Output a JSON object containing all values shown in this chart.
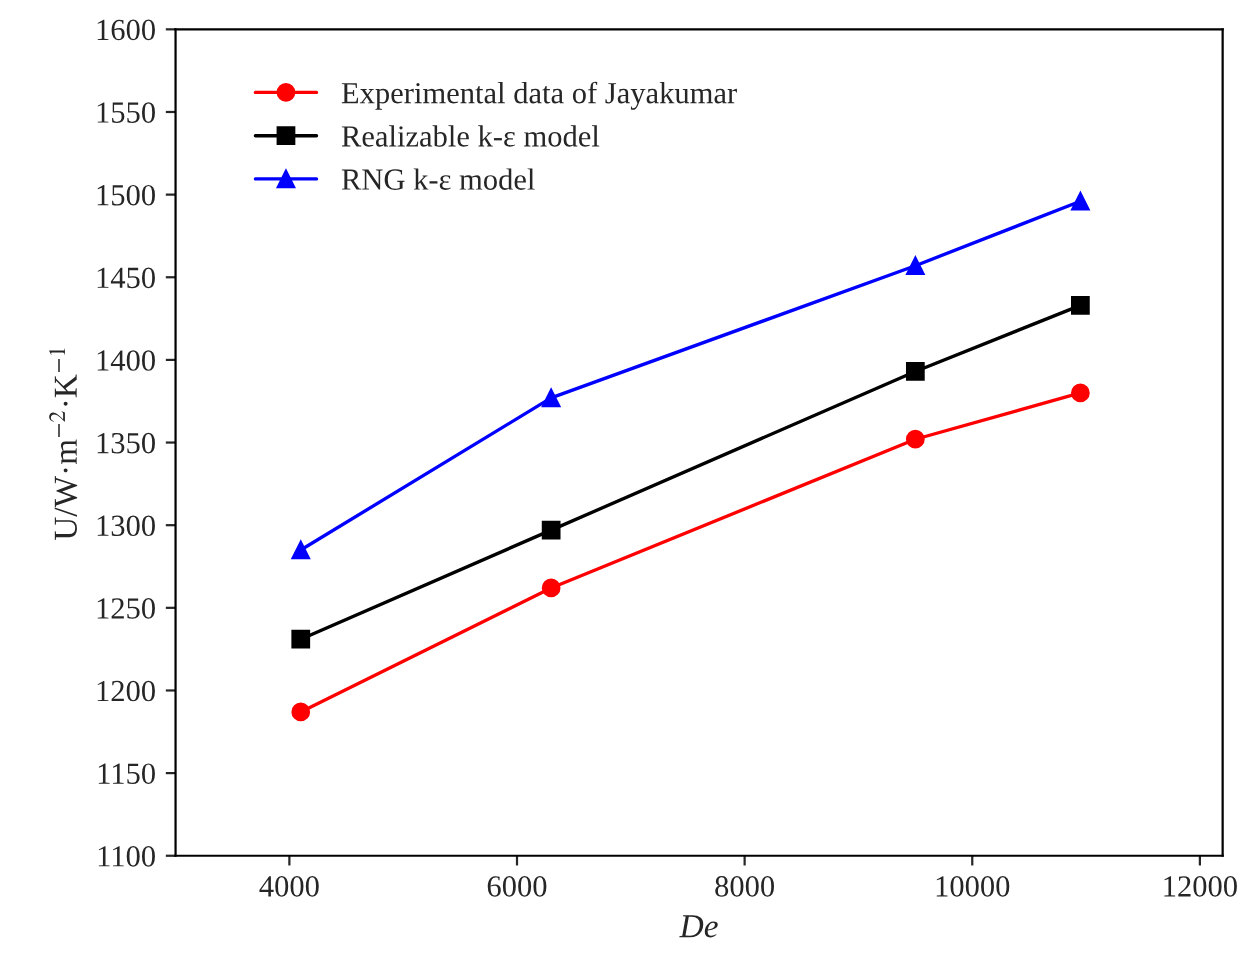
{
  "chart_data": {
    "type": "line",
    "xlabel": "De",
    "ylabel": "U/W·m$^{−2}$·K$^{−1}$",
    "xlim": [
      3000,
      12200
    ],
    "xticks": [
      4000,
      6000,
      8000,
      10000,
      12000
    ],
    "ylim": [
      1100,
      1600
    ],
    "yticks": [
      1100,
      1150,
      1200,
      1250,
      1300,
      1350,
      1400,
      1450,
      1500,
      1550,
      1600
    ],
    "grid": false,
    "legend": "top left",
    "series": [
      {
        "name": "Experimental data of Jayakumar",
        "color": "#ff0000",
        "marker": "circle",
        "x": [
          4100,
          6300,
          9500,
          10950
        ],
        "values": [
          1187,
          1262,
          1352,
          1380
        ]
      },
      {
        "name": "Realizable k-ε model",
        "color": "#000000",
        "marker": "square",
        "x": [
          4100,
          6300,
          9500,
          10950
        ],
        "values": [
          1231,
          1297,
          1393,
          1433
        ]
      },
      {
        "name": "RNG k-ε model",
        "color": "#0000ff",
        "marker": "triangle",
        "x": [
          4100,
          6300,
          9500,
          10950
        ],
        "values": [
          1285,
          1377,
          1457,
          1496
        ]
      }
    ]
  }
}
